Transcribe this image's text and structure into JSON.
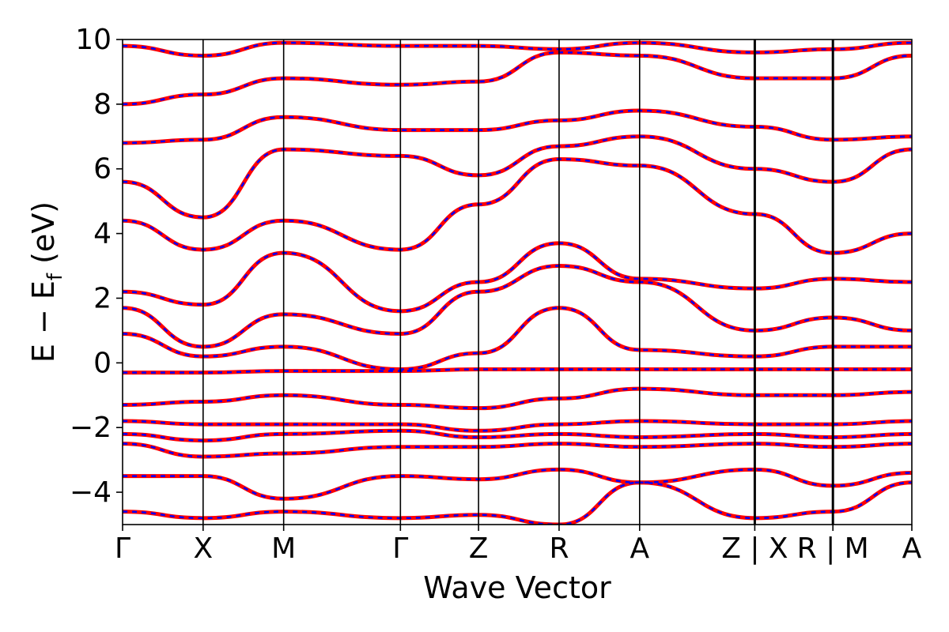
{
  "chart_data": {
    "type": "line",
    "xlabel": "Wave Vector",
    "ylabel": "E − E",
    "ylabel_subscript": "f",
    "ylabel_unit": " (eV)",
    "ylim": [
      -5,
      10
    ],
    "yticks": [
      -4,
      -2,
      0,
      2,
      4,
      6,
      8,
      10
    ],
    "ytick_labels": [
      "−4",
      "−2",
      "0",
      "2",
      "4",
      "6",
      "8",
      "10"
    ],
    "x_range": [
      0,
      9.8
    ],
    "kpoints": [
      {
        "label": "Γ",
        "x": 0.0,
        "boundary": false
      },
      {
        "label": "X",
        "x": 1.0,
        "boundary": false
      },
      {
        "label": "M",
        "x": 2.0,
        "boundary": false
      },
      {
        "label": "Γ",
        "x": 3.45,
        "boundary": false
      },
      {
        "label": "Z",
        "x": 4.42,
        "boundary": false
      },
      {
        "label": "R",
        "x": 5.42,
        "boundary": false
      },
      {
        "label": "A",
        "x": 6.42,
        "boundary": false
      },
      {
        "label": "Z | X",
        "x": 7.85,
        "boundary": true
      },
      {
        "label": "R | M",
        "x": 8.82,
        "boundary": true
      },
      {
        "label": "A",
        "x": 9.8,
        "boundary": false
      }
    ],
    "grid": false,
    "legend": "none",
    "series": [
      {
        "color": "#ff0000",
        "style": "solid",
        "bands": [
          {
            "x": [
              0,
              1,
              2,
              3.45,
              4.42,
              5.42,
              6.42,
              7.85,
              8.82,
              9.8
            ],
            "y": [
              -0.3,
              -0.3,
              -0.25,
              -0.25,
              -0.2,
              -0.2,
              -0.2,
              -0.2,
              -0.2,
              -0.2
            ]
          },
          {
            "x": [
              0,
              1,
              2,
              3.45,
              4.42,
              5.42,
              6.42,
              7.85,
              8.82,
              9.8
            ],
            "y": [
              0.9,
              0.2,
              0.5,
              -0.2,
              0.3,
              1.7,
              0.4,
              0.2,
              0.5,
              0.5
            ]
          },
          {
            "x": [
              0,
              1,
              2,
              3.45,
              4.42,
              5.42,
              6.42,
              7.85,
              8.82,
              9.8
            ],
            "y": [
              1.7,
              0.5,
              1.5,
              0.9,
              2.2,
              3.0,
              2.5,
              1.0,
              1.4,
              1.0
            ]
          },
          {
            "x": [
              0,
              1,
              2,
              3.45,
              4.42,
              5.42,
              6.42,
              7.85,
              8.82,
              9.8
            ],
            "y": [
              -1.3,
              -1.2,
              -1.0,
              -1.3,
              -1.4,
              -1.1,
              -0.8,
              -1.0,
              -1.0,
              -0.9
            ]
          },
          {
            "x": [
              0,
              1,
              2,
              3.45,
              4.42,
              5.42,
              6.42,
              7.85,
              8.82,
              9.8
            ],
            "y": [
              -1.8,
              -1.9,
              -1.9,
              -1.9,
              -2.1,
              -1.9,
              -1.8,
              -1.9,
              -1.9,
              -1.8
            ]
          },
          {
            "x": [
              0,
              1,
              2,
              3.45,
              4.42,
              5.42,
              6.42,
              7.85,
              8.82,
              9.8
            ],
            "y": [
              -2.2,
              -2.4,
              -2.2,
              -2.1,
              -2.3,
              -2.2,
              -2.3,
              -2.2,
              -2.3,
              -2.2
            ]
          },
          {
            "x": [
              0,
              1,
              2,
              3.45,
              4.42,
              5.42,
              6.42,
              7.85,
              8.82,
              9.8
            ],
            "y": [
              -2.5,
              -2.9,
              -2.8,
              -2.6,
              -2.6,
              -2.5,
              -2.6,
              -2.5,
              -2.6,
              -2.5
            ]
          },
          {
            "x": [
              0,
              1,
              2,
              3.45,
              4.42,
              5.42,
              6.42,
              7.85,
              8.82,
              9.8
            ],
            "y": [
              -3.5,
              -3.5,
              -4.2,
              -3.5,
              -3.6,
              -3.3,
              -3.7,
              -3.3,
              -3.8,
              -3.4
            ]
          },
          {
            "x": [
              0,
              1,
              2,
              3.45,
              4.42,
              5.42,
              6.42,
              7.85,
              8.82,
              9.8
            ],
            "y": [
              -4.6,
              -4.8,
              -4.6,
              -4.8,
              -4.7,
              -5.0,
              -3.7,
              -4.8,
              -4.6,
              -3.7
            ]
          },
          {
            "x": [
              0,
              1,
              2,
              3.45,
              4.42,
              5.42,
              6.42,
              7.85,
              8.82,
              9.8
            ],
            "y": [
              2.2,
              1.8,
              3.4,
              1.6,
              2.5,
              3.7,
              2.6,
              2.3,
              2.6,
              2.5
            ]
          },
          {
            "x": [
              0,
              1,
              2,
              3.45,
              4.42,
              5.42,
              6.42,
              7.85,
              8.82,
              9.8
            ],
            "y": [
              4.4,
              3.5,
              4.4,
              3.5,
              4.9,
              6.3,
              6.1,
              4.6,
              3.4,
              4.0
            ]
          },
          {
            "x": [
              0,
              1,
              2,
              3.45,
              4.42,
              5.42,
              6.42,
              7.85,
              8.82,
              9.8
            ],
            "y": [
              5.6,
              4.5,
              6.6,
              6.4,
              5.8,
              6.7,
              7.0,
              6.0,
              5.6,
              6.6
            ]
          },
          {
            "x": [
              0,
              1,
              2,
              3.45,
              4.42,
              5.42,
              6.42,
              7.85,
              8.82,
              9.8
            ],
            "y": [
              6.8,
              6.9,
              7.6,
              7.2,
              7.2,
              7.5,
              7.8,
              7.3,
              6.9,
              7.0
            ]
          },
          {
            "x": [
              0,
              1,
              2,
              3.45,
              4.42,
              5.42,
              6.42,
              7.85,
              8.82,
              9.8
            ],
            "y": [
              8.0,
              8.3,
              8.8,
              8.6,
              8.7,
              9.6,
              9.5,
              8.8,
              8.8,
              9.5
            ]
          },
          {
            "x": [
              0,
              1,
              2,
              3.45,
              4.42,
              5.42,
              6.42,
              7.85,
              8.82,
              9.8
            ],
            "y": [
              9.8,
              9.5,
              9.9,
              9.8,
              9.8,
              9.7,
              9.9,
              9.6,
              9.7,
              9.9
            ]
          }
        ]
      },
      {
        "color": "#0000ff",
        "style": "dashed",
        "bands": "same_as_previous"
      }
    ]
  }
}
